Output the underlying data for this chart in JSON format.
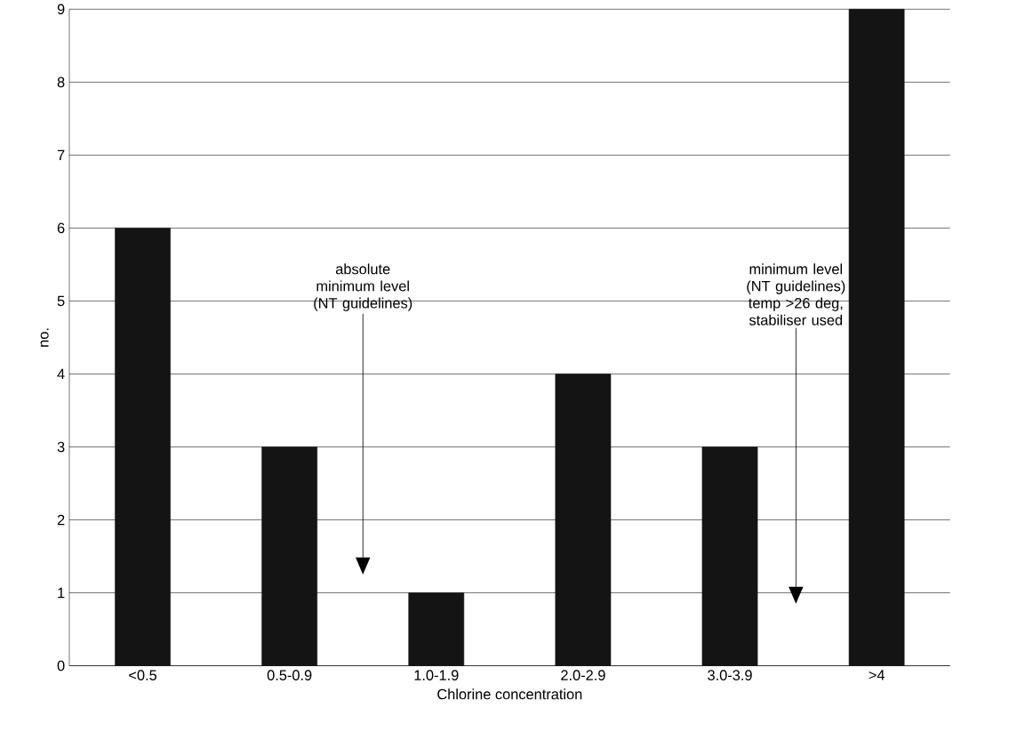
{
  "chart_data": {
    "type": "bar",
    "xlabel": "Chlorine concentration",
    "ylabel": "no.",
    "categories": [
      "<0.5",
      "0.5-0.9",
      "1.0-1.9",
      "2.0-2.9",
      "3.0-3.9",
      ">4"
    ],
    "values": [
      6,
      3,
      1,
      4,
      3,
      9
    ],
    "color": "#141414",
    "ylim": [
      0,
      9
    ],
    "yticks": [
      0,
      1,
      2,
      3,
      4,
      5,
      6,
      7,
      8,
      9
    ],
    "grid": "y",
    "annotations": [
      "absolute minimum level (NT guidelines)",
      "minimum level (NT guidelines) temp >26 deg, stabiliser used"
    ]
  }
}
